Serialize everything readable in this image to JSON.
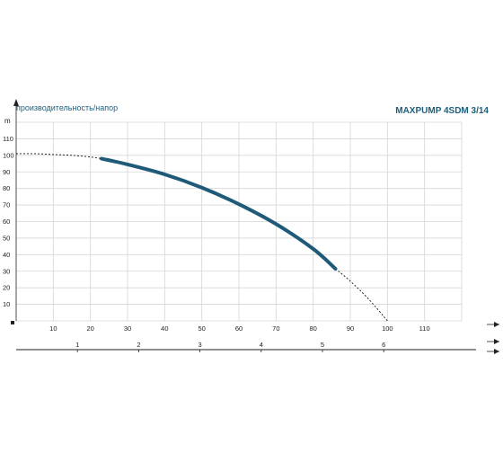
{
  "chart_data": {
    "type": "line",
    "title": "MAXPUMP 4SDM 3/14",
    "ylabel": "производительность/напор",
    "yunit": "m",
    "x": [
      23,
      30,
      40,
      50,
      60,
      70,
      80,
      86
    ],
    "series": [
      {
        "values": [
          98,
          94.5,
          88.5,
          80.5,
          70.5,
          58.5,
          43.5,
          31.5
        ]
      }
    ],
    "extrapolated": {
      "x": [
        0,
        5,
        10,
        15,
        20,
        23,
        86,
        90,
        95,
        100
      ],
      "y": [
        101,
        101,
        100.5,
        100,
        99,
        98,
        31.5,
        24,
        13,
        0
      ]
    },
    "xlim": [
      0,
      120
    ],
    "ylim": [
      0,
      120
    ],
    "x_ticks": [
      "10",
      "20",
      "30",
      "40",
      "50",
      "60",
      "70",
      "80",
      "90",
      "100",
      "110"
    ],
    "y_ticks": [
      "10",
      "20",
      "30",
      "40",
      "50",
      "60",
      "70",
      "80",
      "90",
      "100",
      "110"
    ],
    "secondary_x_ticks": [
      "1",
      "2",
      "3",
      "4",
      "5",
      "6"
    ],
    "grid": true,
    "colors": {
      "curve": "#1f5a78",
      "text": "#1e5f7e",
      "grid": "#d6d6d6",
      "axis": "#222222"
    }
  }
}
